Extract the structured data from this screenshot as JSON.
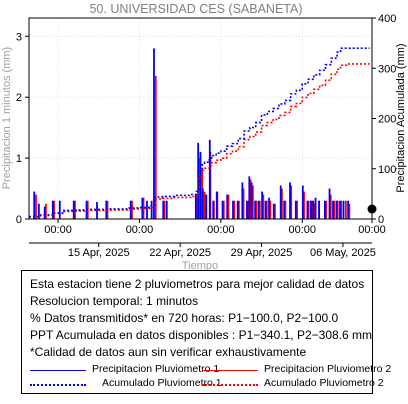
{
  "chart_data": {
    "type": "bar",
    "title": "50. UNIVERSIDAD CES (SABANETA)",
    "xlabel": "Tiempo",
    "ylabel_left": "Precipitacion 1 minutos (mm)",
    "ylabel_right": "Precipitacion Acumulada (mm)",
    "ylim_left": [
      0,
      3.3
    ],
    "ylim_right": [
      0,
      400
    ],
    "yticks_left": [
      "0",
      "1",
      "2",
      "3"
    ],
    "yticks_right": [
      "0",
      "100",
      "200",
      "300",
      "400"
    ],
    "xticks_top": [
      "00:00",
      "00:00",
      "00:00",
      "00:00",
      "00:00"
    ],
    "xticks_dates": [
      "15 Apr, 2025",
      "22 Apr, 2025",
      "29 Apr, 2025",
      "06 May, 2025"
    ],
    "xrange_days": [
      -5.5,
      24.0
    ],
    "colors": {
      "p1": "#0000ff",
      "p2": "#ff0000",
      "grid": "#d0d0d0",
      "title": "#808080"
    },
    "series": [
      {
        "name": "Precipitacion Pluviometro 1",
        "kind": "bar",
        "values": [
          [
            -5.0,
            0.45
          ],
          [
            -4.6,
            0.25
          ],
          [
            -4.1,
            0.2
          ],
          [
            -3.4,
            0.3
          ],
          [
            -2.8,
            0.3
          ],
          [
            -1.6,
            0.3
          ],
          [
            -0.5,
            0.3
          ],
          [
            0.4,
            0.28
          ],
          [
            1.2,
            0.3
          ],
          [
            3.3,
            0.3
          ],
          [
            4.3,
            0.35
          ],
          [
            4.7,
            0.3
          ],
          [
            5.1,
            0.3
          ],
          [
            5.3,
            2.8
          ],
          [
            6.1,
            0.3
          ],
          [
            6.4,
            0.3
          ],
          [
            8.9,
            0.4
          ],
          [
            9.1,
            1.25
          ],
          [
            9.3,
            1.1
          ],
          [
            9.5,
            0.5
          ],
          [
            9.8,
            0.4
          ],
          [
            10.1,
            1.3
          ],
          [
            10.4,
            0.3
          ],
          [
            10.7,
            0.45
          ],
          [
            11.2,
            0.3
          ],
          [
            11.6,
            0.4
          ],
          [
            12.1,
            0.3
          ],
          [
            12.5,
            0.3
          ],
          [
            12.9,
            0.6
          ],
          [
            13.3,
            0.3
          ],
          [
            13.5,
            0.7
          ],
          [
            13.7,
            0.6
          ],
          [
            14.0,
            0.3
          ],
          [
            14.3,
            0.3
          ],
          [
            14.6,
            0.45
          ],
          [
            14.9,
            0.3
          ],
          [
            15.2,
            0.35
          ],
          [
            15.6,
            0.25
          ],
          [
            16.2,
            0.55
          ],
          [
            16.5,
            0.3
          ],
          [
            17.0,
            0.6
          ],
          [
            17.5,
            0.3
          ],
          [
            18.1,
            0.55
          ],
          [
            18.5,
            0.3
          ],
          [
            18.8,
            0.3
          ],
          [
            19.0,
            0.3
          ],
          [
            19.2,
            0.35
          ],
          [
            19.5,
            0.3
          ],
          [
            20.0,
            0.3
          ],
          [
            20.4,
            0.5
          ],
          [
            20.7,
            0.3
          ],
          [
            21.0,
            0.3
          ],
          [
            21.3,
            0.3
          ],
          [
            21.6,
            0.3
          ],
          [
            22.0,
            0.3
          ]
        ]
      },
      {
        "name": "Precipitacion Pluviometro 2",
        "kind": "bar",
        "values": [
          [
            -4.95,
            0.4
          ],
          [
            -4.1,
            0.25
          ],
          [
            -3.4,
            0.3
          ],
          [
            -1.6,
            0.3
          ],
          [
            -0.5,
            0.3
          ],
          [
            1.2,
            0.3
          ],
          [
            3.3,
            0.3
          ],
          [
            4.3,
            0.35
          ],
          [
            5.35,
            2.35
          ],
          [
            6.1,
            0.3
          ],
          [
            8.85,
            0.4
          ],
          [
            9.05,
            1.0
          ],
          [
            9.35,
            0.8
          ],
          [
            9.55,
            0.45
          ],
          [
            10.05,
            1.1
          ],
          [
            10.35,
            0.3
          ],
          [
            10.65,
            0.45
          ],
          [
            11.2,
            0.3
          ],
          [
            11.6,
            0.4
          ],
          [
            12.1,
            0.3
          ],
          [
            12.5,
            0.3
          ],
          [
            12.9,
            0.5
          ],
          [
            13.3,
            0.3
          ],
          [
            13.5,
            0.65
          ],
          [
            13.7,
            0.55
          ],
          [
            14.0,
            0.3
          ],
          [
            14.3,
            0.3
          ],
          [
            14.6,
            0.4
          ],
          [
            14.9,
            0.3
          ],
          [
            15.2,
            0.3
          ],
          [
            15.6,
            0.25
          ],
          [
            16.2,
            0.5
          ],
          [
            16.5,
            0.3
          ],
          [
            17.0,
            0.55
          ],
          [
            17.5,
            0.3
          ],
          [
            18.1,
            0.45
          ],
          [
            18.5,
            0.3
          ],
          [
            18.8,
            0.3
          ],
          [
            19.0,
            0.25
          ],
          [
            19.4,
            0.3
          ],
          [
            20.0,
            0.3
          ],
          [
            20.4,
            0.4
          ],
          [
            20.7,
            0.3
          ],
          [
            21.0,
            0.3
          ],
          [
            21.3,
            0.3
          ],
          [
            21.7,
            0.3
          ],
          [
            22.0,
            0.25
          ]
        ]
      },
      {
        "name": "Acumulado Pluviometro 1",
        "kind": "line",
        "points": [
          [
            -5.5,
            5
          ],
          [
            -4.5,
            8
          ],
          [
            -3.5,
            12
          ],
          [
            -2.5,
            17
          ],
          [
            -1.5,
            18
          ],
          [
            -0.5,
            19
          ],
          [
            1.0,
            20
          ],
          [
            3.0,
            22
          ],
          [
            4.0,
            23
          ],
          [
            5.0,
            26
          ],
          [
            5.3,
            44
          ],
          [
            6.0,
            45
          ],
          [
            7.0,
            47
          ],
          [
            8.5,
            49
          ],
          [
            8.9,
            55
          ],
          [
            9.1,
            95
          ],
          [
            9.4,
            108
          ],
          [
            9.6,
            113
          ],
          [
            10.0,
            118
          ],
          [
            10.2,
            126
          ],
          [
            10.6,
            131
          ],
          [
            11.0,
            135
          ],
          [
            11.5,
            145
          ],
          [
            12.0,
            150
          ],
          [
            12.5,
            160
          ],
          [
            13.0,
            175
          ],
          [
            13.5,
            182
          ],
          [
            14.0,
            192
          ],
          [
            14.5,
            207
          ],
          [
            15.0,
            214
          ],
          [
            15.5,
            220
          ],
          [
            16.0,
            229
          ],
          [
            16.5,
            236
          ],
          [
            17.0,
            249
          ],
          [
            17.5,
            256
          ],
          [
            18.0,
            269
          ],
          [
            18.5,
            278
          ],
          [
            19.0,
            287
          ],
          [
            19.5,
            296
          ],
          [
            20.0,
            307
          ],
          [
            20.5,
            320
          ],
          [
            21.0,
            332
          ],
          [
            21.3,
            340
          ],
          [
            22.0,
            340
          ],
          [
            23.8,
            340
          ]
        ]
      },
      {
        "name": "Acumulado Pluviometro 2",
        "kind": "line",
        "points": [
          [
            -5.5,
            4
          ],
          [
            -4.5,
            7
          ],
          [
            -3.5,
            11
          ],
          [
            -2.5,
            15
          ],
          [
            -1.5,
            16
          ],
          [
            -0.5,
            17
          ],
          [
            1.0,
            18
          ],
          [
            3.0,
            20
          ],
          [
            4.0,
            21
          ],
          [
            5.0,
            23
          ],
          [
            5.3,
            40
          ],
          [
            6.0,
            41
          ],
          [
            7.0,
            43
          ],
          [
            8.5,
            45
          ],
          [
            8.9,
            50
          ],
          [
            9.1,
            85
          ],
          [
            9.4,
            97
          ],
          [
            9.6,
            101
          ],
          [
            10.0,
            106
          ],
          [
            10.2,
            112
          ],
          [
            10.6,
            117
          ],
          [
            11.0,
            121
          ],
          [
            11.5,
            130
          ],
          [
            12.0,
            135
          ],
          [
            12.5,
            144
          ],
          [
            13.0,
            158
          ],
          [
            13.5,
            164
          ],
          [
            14.0,
            173
          ],
          [
            14.5,
            186
          ],
          [
            15.0,
            192
          ],
          [
            15.5,
            198
          ],
          [
            16.0,
            206
          ],
          [
            16.5,
            212
          ],
          [
            17.0,
            224
          ],
          [
            17.5,
            230
          ],
          [
            18.0,
            242
          ],
          [
            18.5,
            250
          ],
          [
            19.0,
            258
          ],
          [
            19.5,
            266
          ],
          [
            20.0,
            276
          ],
          [
            20.5,
            288
          ],
          [
            21.0,
            298
          ],
          [
            21.3,
            306
          ],
          [
            22.0,
            308.6
          ],
          [
            23.8,
            308.6
          ]
        ]
      }
    ]
  },
  "notes": {
    "line1": "Esta estacion tiene 2 pluviometros para mejor calidad de datos",
    "line2": "Resolucion temporal: 1 minutos",
    "line3": "% Datos transmitidos* en 720 horas: P1−100.0, P2−100.0",
    "line4": "PPT Acumulada en datos disponibles : P1−340.1, P2−308.6 mm",
    "line5": "*Calidad de datos aun sin verificar exhaustivamente"
  },
  "legend": {
    "p1_bar": "Precipitacion Pluviometro 1",
    "p2_bar": "Precipitacion Pluviometro 2",
    "p1_acc": "Acumulado Pluviometro 1",
    "p2_acc": "Acumulado Pluviometro 2"
  }
}
